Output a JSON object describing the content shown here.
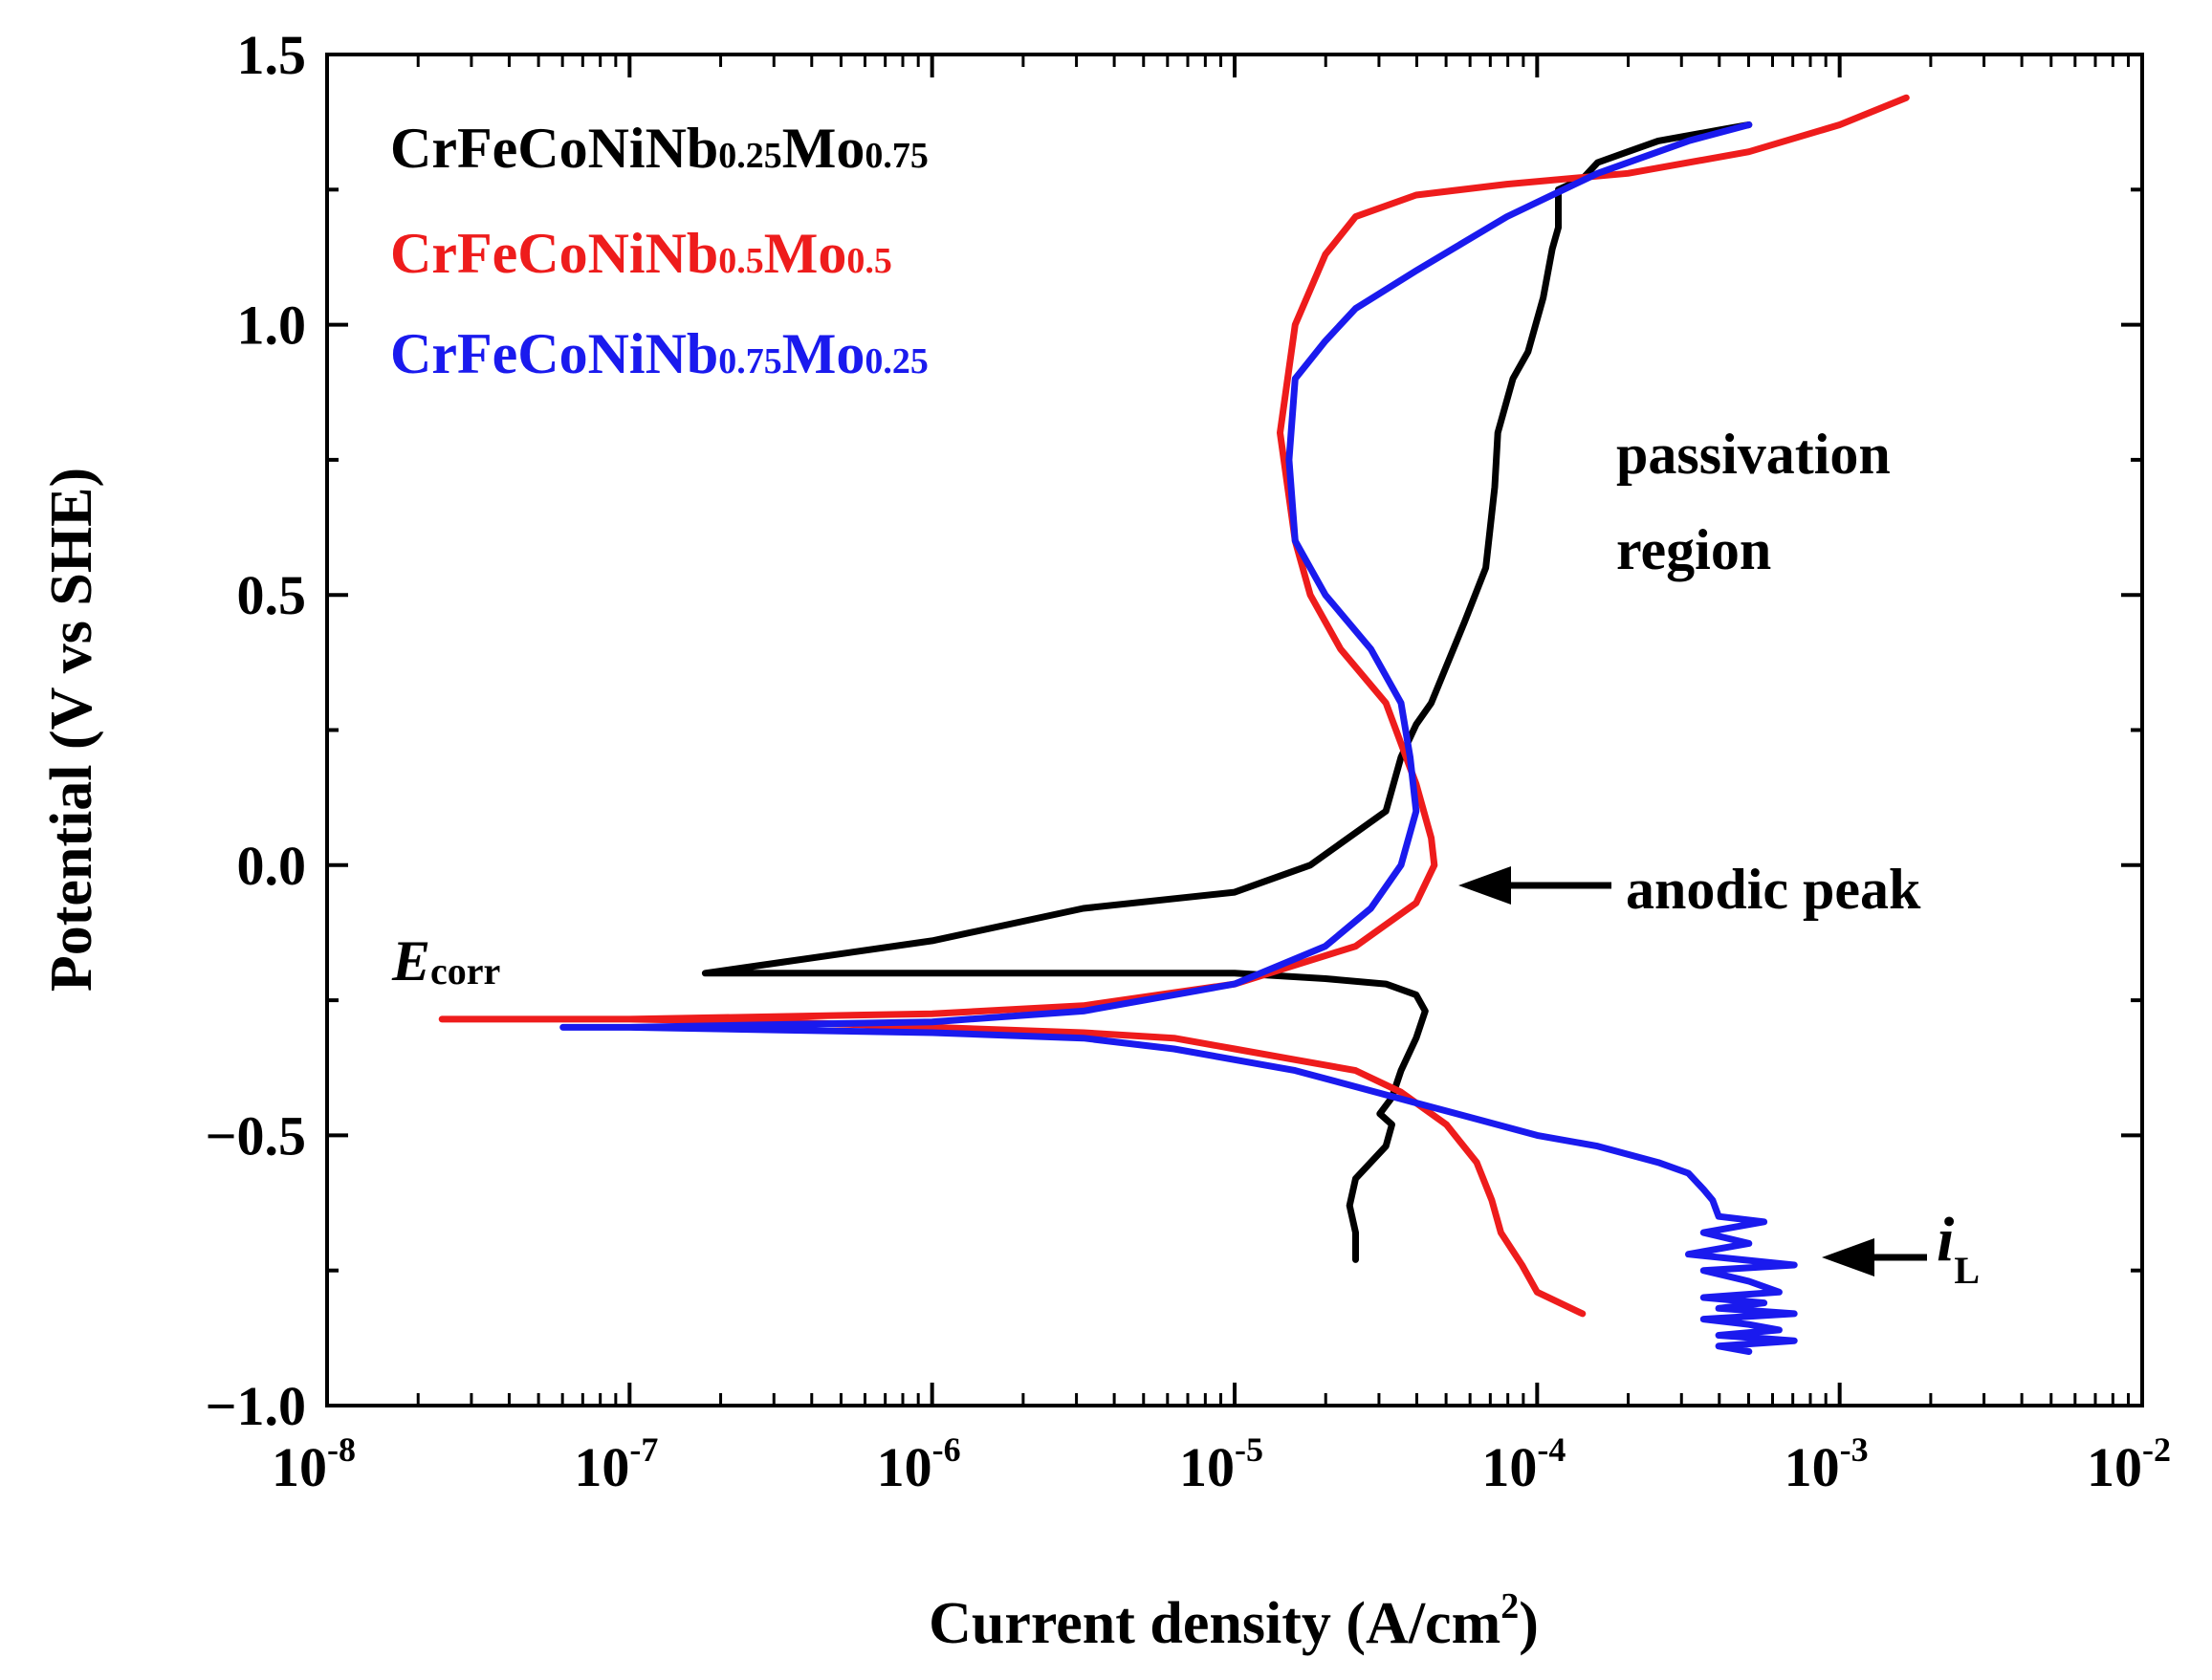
{
  "chart_data": {
    "type": "line",
    "title": "",
    "xlabel": "Current density (A/cm",
    "xlabel_sup": "2",
    "xlabel_close": ")",
    "ylabel": "Potential (V vs SHE)",
    "xscale": "log",
    "xlim_log10": [
      -8,
      -2
    ],
    "ylim": [
      -1.0,
      1.5
    ],
    "y_ticks": [
      {
        "value": 1.5,
        "label": "1.5"
      },
      {
        "value": 1.0,
        "label": "1.0"
      },
      {
        "value": 0.5,
        "label": "0.5"
      },
      {
        "value": 0.0,
        "label": "0.0"
      },
      {
        "value": -0.5,
        "label": "−0.5"
      },
      {
        "value": -1.0,
        "label": "−1.0"
      }
    ],
    "x_ticks": [
      {
        "exp": -8,
        "base": "10",
        "sup": "-8"
      },
      {
        "exp": -7,
        "base": "10",
        "sup": "-7"
      },
      {
        "exp": -6,
        "base": "10",
        "sup": "-6"
      },
      {
        "exp": -5,
        "base": "10",
        "sup": "-5"
      },
      {
        "exp": -4,
        "base": "10",
        "sup": "-4"
      },
      {
        "exp": -3,
        "base": "10",
        "sup": "-3"
      },
      {
        "exp": -2,
        "base": "10",
        "sup": "-2"
      }
    ],
    "legend": [
      {
        "parts": [
          {
            "t": "CrFeCoNiNb",
            "s": false
          },
          {
            "t": "0.25",
            "s": true
          },
          {
            "t": "Mo",
            "s": false
          },
          {
            "t": "0.75",
            "s": true
          }
        ],
        "color": "#000000"
      },
      {
        "parts": [
          {
            "t": "CrFeCoNiNb",
            "s": false
          },
          {
            "t": "0.5",
            "s": true
          },
          {
            "t": "Mo",
            "s": false
          },
          {
            "t": "0.5",
            "s": true
          }
        ],
        "color": "#ee1c1c"
      },
      {
        "parts": [
          {
            "t": "CrFeCoNiNb",
            "s": false
          },
          {
            "t": "0.75",
            "s": true
          },
          {
            "t": "Mo",
            "s": false
          },
          {
            "t": "0.25",
            "s": true
          }
        ],
        "color": "#1a1aee"
      }
    ],
    "annotations": {
      "passivation_line1": "passivation",
      "passivation_line2": "region",
      "anodic_peak": "anodic peak",
      "ecorr_main": "E",
      "ecorr_sub": "corr",
      "il_main": "i",
      "il_sub": "L"
    },
    "series": [
      {
        "name": "CrFeCoNiNb0.25Mo0.75",
        "color": "#000000",
        "x_log10": [
          -3.3,
          -3.4,
          -3.6,
          -3.7,
          -3.8,
          -3.85,
          -3.93,
          -3.93,
          -3.95,
          -3.98,
          -4.03,
          -4.08,
          -4.13,
          -4.14,
          -4.17,
          -4.24,
          -4.35,
          -4.4,
          -4.45,
          -4.5,
          -4.75,
          -5.0,
          -5.5,
          -6.0,
          -6.5,
          -6.75,
          -6.0,
          -5.5,
          -5.0,
          -4.7,
          -4.5,
          -4.4,
          -4.37,
          -4.4,
          -4.45,
          -4.48,
          -4.52,
          -4.48,
          -4.5,
          -4.6,
          -4.62,
          -4.6,
          -4.6
        ],
        "y": [
          1.37,
          1.36,
          1.34,
          1.32,
          1.3,
          1.27,
          1.25,
          1.18,
          1.14,
          1.05,
          0.95,
          0.9,
          0.8,
          0.7,
          0.55,
          0.45,
          0.3,
          0.26,
          0.2,
          0.1,
          0.0,
          -0.05,
          -0.08,
          -0.14,
          -0.18,
          -0.2,
          -0.2,
          -0.2,
          -0.2,
          -0.21,
          -0.22,
          -0.24,
          -0.27,
          -0.32,
          -0.38,
          -0.43,
          -0.46,
          -0.48,
          -0.52,
          -0.58,
          -0.63,
          -0.68,
          -0.73
        ]
      },
      {
        "name": "CrFeCoNiNb0.5Mo0.5",
        "color": "#ee1c1c",
        "x_log10": [
          -2.78,
          -3.0,
          -3.3,
          -3.7,
          -4.1,
          -4.4,
          -4.6,
          -4.7,
          -4.8,
          -4.85,
          -4.8,
          -4.75,
          -4.65,
          -4.5,
          -4.4,
          -4.35,
          -4.34,
          -4.4,
          -4.6,
          -5.0,
          -5.5,
          -6.0,
          -6.5,
          -7.0,
          -7.62,
          -7.0,
          -6.5,
          -6.0,
          -5.5,
          -5.2,
          -5.0,
          -4.8,
          -4.6,
          -4.45,
          -4.3,
          -4.2,
          -4.15,
          -4.12,
          -4.05,
          -4.0,
          -3.85
        ],
        "y": [
          1.42,
          1.37,
          1.32,
          1.28,
          1.26,
          1.24,
          1.2,
          1.13,
          1.0,
          0.8,
          0.6,
          0.5,
          0.4,
          0.3,
          0.15,
          0.05,
          0.0,
          -0.07,
          -0.15,
          -0.22,
          -0.26,
          -0.275,
          -0.28,
          -0.285,
          -0.285,
          -0.285,
          -0.29,
          -0.3,
          -0.31,
          -0.32,
          -0.34,
          -0.36,
          -0.38,
          -0.42,
          -0.48,
          -0.55,
          -0.62,
          -0.68,
          -0.74,
          -0.79,
          -0.83
        ]
      },
      {
        "name": "CrFeCoNiNb0.75Mo0.25",
        "color": "#1a1aee",
        "x_log10": [
          -3.3,
          -3.5,
          -3.8,
          -4.1,
          -4.4,
          -4.6,
          -4.7,
          -4.8,
          -4.82,
          -4.8,
          -4.7,
          -4.55,
          -4.45,
          -4.42,
          -4.4,
          -4.45,
          -4.55,
          -4.7,
          -5.0,
          -5.5,
          -6.0,
          -6.5,
          -7.0,
          -7.22,
          -7.0,
          -6.5,
          -6.0,
          -5.5,
          -5.2,
          -5.0,
          -4.8,
          -4.6,
          -4.4,
          -4.2,
          -4.0,
          -3.8,
          -3.6,
          -3.5,
          -3.45,
          -3.42,
          -3.4,
          -3.25,
          -3.45,
          -3.3,
          -3.5,
          -3.15,
          -3.45,
          -3.3,
          -3.2,
          -3.45,
          -3.25,
          -3.4,
          -3.15,
          -3.45,
          -3.3,
          -3.2,
          -3.4,
          -3.15,
          -3.4,
          -3.3
        ],
        "y": [
          1.37,
          1.34,
          1.28,
          1.2,
          1.1,
          1.03,
          0.97,
          0.9,
          0.75,
          0.6,
          0.5,
          0.4,
          0.3,
          0.2,
          0.1,
          0.0,
          -0.08,
          -0.15,
          -0.22,
          -0.27,
          -0.29,
          -0.295,
          -0.3,
          -0.3,
          -0.3,
          -0.305,
          -0.31,
          -0.32,
          -0.34,
          -0.36,
          -0.38,
          -0.41,
          -0.44,
          -0.47,
          -0.5,
          -0.52,
          -0.55,
          -0.57,
          -0.6,
          -0.62,
          -0.65,
          -0.66,
          -0.68,
          -0.7,
          -0.72,
          -0.74,
          -0.75,
          -0.77,
          -0.79,
          -0.8,
          -0.81,
          -0.82,
          -0.83,
          -0.84,
          -0.85,
          -0.86,
          -0.87,
          -0.88,
          -0.89,
          -0.9
        ]
      }
    ]
  }
}
